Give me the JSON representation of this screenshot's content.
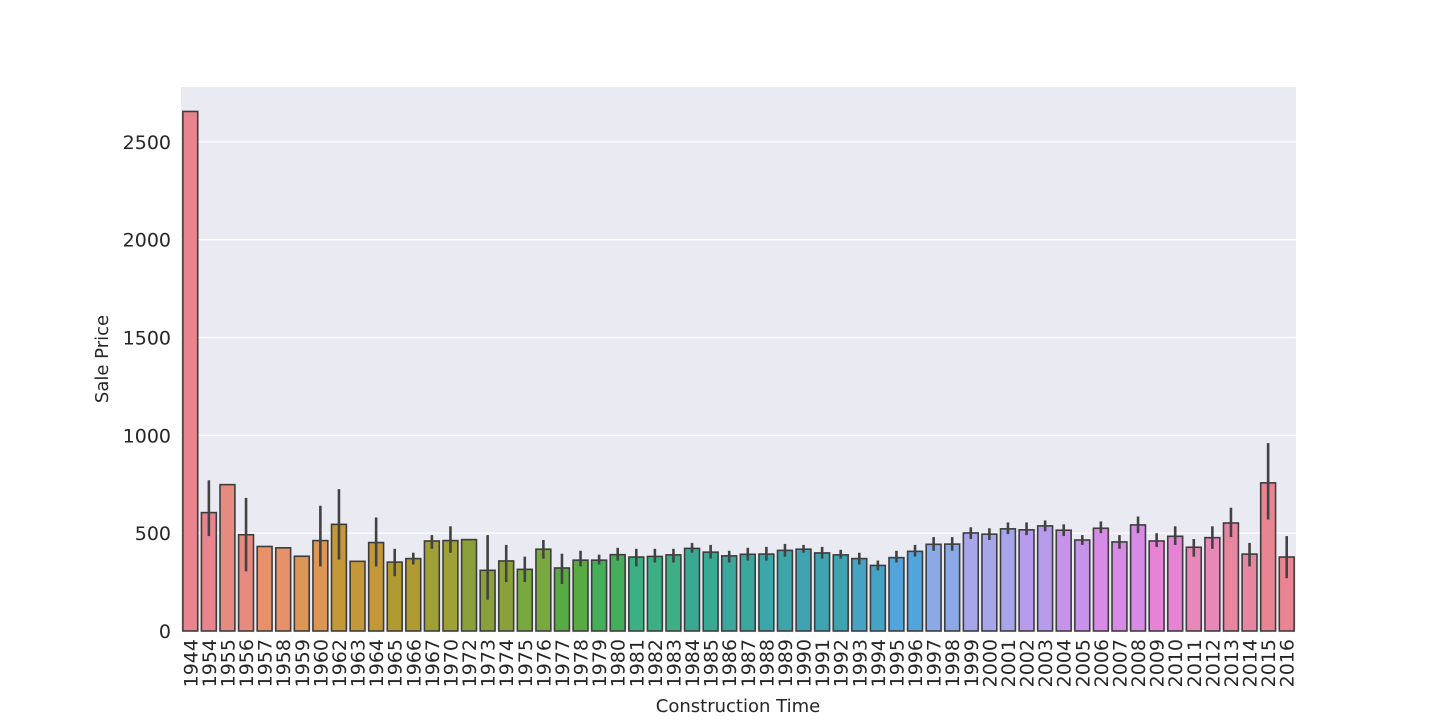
{
  "chart_data": {
    "type": "bar",
    "title": "",
    "xlabel": "Construction Time",
    "ylabel": "Sale Price",
    "ylim": [
      0,
      2780
    ],
    "yticks": [
      0,
      500,
      1000,
      1500,
      2000,
      2500
    ],
    "grid": true,
    "background": "#eaeaf2",
    "categories": [
      "1944",
      "1954",
      "1955",
      "1956",
      "1957",
      "1958",
      "1959",
      "1960",
      "1962",
      "1963",
      "1964",
      "1965",
      "1966",
      "1967",
      "1970",
      "1972",
      "1973",
      "1974",
      "1975",
      "1976",
      "1977",
      "1978",
      "1979",
      "1980",
      "1981",
      "1982",
      "1983",
      "1984",
      "1985",
      "1986",
      "1987",
      "1988",
      "1989",
      "1990",
      "1991",
      "1992",
      "1993",
      "1994",
      "1995",
      "1996",
      "1997",
      "1998",
      "1999",
      "2000",
      "2001",
      "2002",
      "2003",
      "2004",
      "2005",
      "2006",
      "2007",
      "2008",
      "2009",
      "2010",
      "2011",
      "2012",
      "2013",
      "2014",
      "2015",
      "2016"
    ],
    "values": [
      2655,
      605,
      748,
      492,
      432,
      425,
      382,
      462,
      545,
      356,
      452,
      352,
      370,
      460,
      462,
      467,
      310,
      358,
      315,
      418,
      322,
      362,
      362,
      390,
      378,
      381,
      389,
      422,
      403,
      384,
      392,
      393,
      412,
      418,
      399,
      389,
      370,
      335,
      375,
      407,
      443,
      444,
      501,
      495,
      522,
      517,
      537,
      515,
      465,
      525,
      455,
      542,
      460,
      484,
      428,
      477,
      552,
      393,
      757,
      378
    ],
    "error_low": [
      null,
      485,
      null,
      305,
      null,
      null,
      null,
      330,
      365,
      null,
      330,
      280,
      340,
      420,
      400,
      null,
      160,
      250,
      250,
      370,
      240,
      330,
      340,
      360,
      330,
      350,
      350,
      400,
      370,
      350,
      360,
      360,
      380,
      400,
      370,
      370,
      340,
      310,
      350,
      380,
      410,
      410,
      470,
      465,
      495,
      490,
      510,
      485,
      440,
      500,
      420,
      500,
      430,
      440,
      380,
      420,
      480,
      330,
      570,
      270
    ],
    "error_high": [
      null,
      770,
      null,
      680,
      null,
      null,
      null,
      640,
      725,
      null,
      580,
      420,
      400,
      490,
      535,
      null,
      490,
      440,
      380,
      465,
      395,
      410,
      390,
      425,
      420,
      420,
      420,
      450,
      440,
      410,
      425,
      430,
      445,
      440,
      430,
      415,
      400,
      360,
      410,
      440,
      480,
      480,
      530,
      525,
      555,
      555,
      565,
      545,
      490,
      560,
      490,
      585,
      500,
      535,
      470,
      535,
      630,
      450,
      960,
      485
    ],
    "palette": [
      "#e9848e",
      "#e68b80",
      "#e6916a",
      "#dd9653",
      "#c49838",
      "#b09b33",
      "#9fa035",
      "#8aa13a",
      "#78a83e",
      "#58ab42",
      "#45ae58",
      "#3daf84",
      "#3aa993",
      "#3aa89d",
      "#3ca6a8",
      "#3fa3b1",
      "#46a3c3",
      "#52a4dc",
      "#8aa9e6",
      "#a8a6eb",
      "#b79bed",
      "#c793ea",
      "#d88ae7",
      "#e683d5",
      "#e788b8",
      "#e886a1",
      "#e98592"
    ]
  }
}
